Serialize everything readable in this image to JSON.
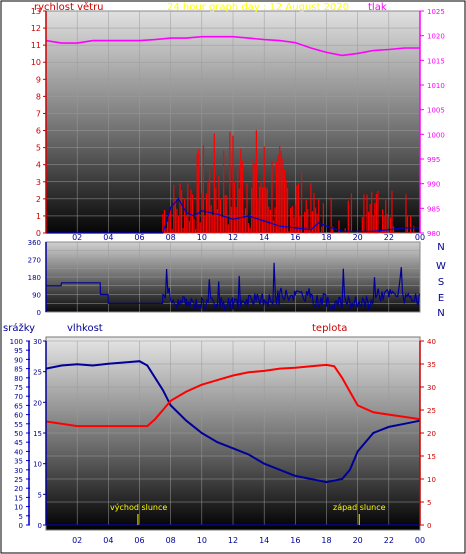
{
  "colors": {
    "wind": "#ff0000",
    "wind_gust": "#ff0000",
    "wind_avg": "#0000cc",
    "pressure": "#ff00ff",
    "direction": "#000099",
    "humidity": "#000099",
    "temperature": "#ff0000",
    "rain": "#0000cc",
    "sun_marker": "#ffff00",
    "title": "#ffff00"
  },
  "chart_data": [
    {
      "type": "line",
      "title": "24 hour graph day : 12 August 2020",
      "ylabel": "rychlost větru",
      "y2label": "tlak",
      "x_ticks": [
        "02",
        "04",
        "06",
        "08",
        "10",
        "12",
        "14",
        "16",
        "18",
        "20",
        "22",
        "00"
      ],
      "xlim_hours": [
        0,
        24
      ],
      "ylim": [
        0,
        13
      ],
      "y_ticks": [
        0,
        1,
        2,
        3,
        4,
        5,
        6,
        7,
        8,
        9,
        10,
        11,
        12,
        13
      ],
      "y2lim": [
        980,
        1025
      ],
      "y2_ticks": [
        980,
        985,
        990,
        995,
        1000,
        1005,
        1010,
        1015,
        1020,
        1025
      ],
      "series": [
        {
          "key": "pressure",
          "axis": "right",
          "x": [
            0,
            1,
            2,
            3,
            4,
            5,
            6,
            7,
            8,
            9,
            10,
            11,
            12,
            13,
            14,
            15,
            16,
            17,
            18,
            19,
            20,
            21,
            22,
            23,
            24
          ],
          "values": [
            1019,
            1018.5,
            1018.5,
            1019,
            1019,
            1019,
            1019,
            1019.2,
            1019.5,
            1019.5,
            1019.8,
            1019.8,
            1019.8,
            1019.5,
            1019.2,
            1019,
            1018.6,
            1017.5,
            1016.6,
            1016,
            1016.4,
            1017,
            1017.2,
            1017.5,
            1017.5
          ]
        },
        {
          "key": "wind_avg",
          "axis": "left",
          "x": [
            0,
            6.5,
            7,
            7.5,
            8,
            8.5,
            9,
            9.5,
            10,
            11,
            12,
            13,
            14,
            15,
            16,
            17,
            17.5,
            18,
            19,
            20,
            21,
            22,
            23,
            24
          ],
          "values": [
            0,
            0,
            0,
            0,
            1.5,
            2,
            1.2,
            1,
            1.3,
            1.1,
            0.8,
            1,
            0.7,
            0.4,
            0.3,
            0.2,
            0.6,
            0.4,
            0.1,
            0.1,
            0.1,
            0.2,
            0.3,
            0.3
          ]
        }
      ],
      "gust_ranges": [
        {
          "from": 7.5,
          "to": 17.5,
          "max": 6.5
        },
        {
          "from": 17.5,
          "to": 24,
          "max": 2.5
        }
      ]
    },
    {
      "type": "line",
      "ylabel_right": [
        "N",
        "W",
        "S",
        "E",
        "N"
      ],
      "xlim_hours": [
        0,
        24
      ],
      "ylim": [
        0,
        360
      ],
      "y_ticks": [
        0,
        45,
        90,
        135,
        180,
        225,
        270,
        315,
        360
      ],
      "y_labels": [
        "0",
        "",
        "90",
        "",
        "180",
        "",
        "270",
        "",
        "360"
      ],
      "series": [
        {
          "key": "direction",
          "x": [
            0,
            1,
            2,
            3,
            3.5,
            4,
            5,
            6,
            7,
            7.5,
            8,
            9,
            10,
            11,
            12,
            13,
            14,
            15,
            16,
            17,
            18,
            19,
            20,
            21,
            22,
            23,
            24
          ],
          "values": [
            135,
            150,
            150,
            150,
            90,
            45,
            45,
            45,
            45,
            90,
            45,
            45,
            45,
            45,
            45,
            60,
            60,
            90,
            90,
            60,
            45,
            45,
            45,
            90,
            90,
            60,
            60
          ]
        }
      ]
    },
    {
      "type": "line",
      "ylabel": "srážky",
      "ylabel2": "vlhkost",
      "y2label": "teplota",
      "x_ticks": [
        "02",
        "04",
        "06",
        "08",
        "10",
        "12",
        "14",
        "16",
        "18",
        "20",
        "22",
        "00"
      ],
      "xlim_hours": [
        0,
        24
      ],
      "rain_ylim": [
        0,
        100
      ],
      "rain_ticks": [
        0,
        5,
        10,
        15,
        20,
        25,
        30,
        35,
        40,
        45,
        50,
        55,
        60,
        65,
        70,
        75,
        80,
        85,
        90,
        95,
        100
      ],
      "humidity_ylim": [
        0,
        30
      ],
      "humidity_ticks": [
        0,
        5,
        10,
        15,
        20,
        25,
        30
      ],
      "temp_ylim": [
        0,
        40
      ],
      "temp_ticks": [
        0,
        5,
        10,
        15,
        20,
        25,
        30,
        35,
        40
      ],
      "series": [
        {
          "key": "humidity",
          "axis": "humidity",
          "x": [
            0,
            1,
            2,
            3,
            4,
            5,
            6,
            6.5,
            7,
            7.5,
            8,
            9,
            10,
            11,
            12,
            13,
            14,
            15,
            16,
            17,
            18,
            19,
            19.5,
            20,
            21,
            22,
            23,
            24
          ],
          "values": [
            25.5,
            26,
            26.2,
            26,
            26.3,
            26.5,
            26.7,
            26,
            24,
            22,
            19.5,
            17,
            15,
            13.5,
            12.5,
            11.5,
            10,
            9,
            8,
            7.5,
            7,
            7.5,
            9,
            12,
            15,
            16,
            16.5,
            17
          ]
        },
        {
          "key": "temperature",
          "axis": "temp",
          "x": [
            0,
            1,
            2,
            3,
            4,
            5,
            6,
            6.5,
            7,
            7.5,
            8,
            9,
            10,
            11,
            12,
            13,
            14,
            15,
            16,
            17,
            18,
            18.5,
            19,
            19.5,
            20,
            21,
            22,
            23,
            24
          ],
          "values": [
            22.5,
            22,
            21.5,
            21.5,
            21.5,
            21.5,
            21.5,
            21.5,
            23,
            25,
            27,
            29,
            30.5,
            31.5,
            32.5,
            33.2,
            33.5,
            34,
            34.2,
            34.5,
            34.8,
            34.5,
            32,
            29,
            26,
            24.5,
            24,
            23.5,
            23
          ]
        },
        {
          "key": "rain",
          "axis": "rain",
          "x": [
            0,
            24
          ],
          "values": [
            0,
            0
          ]
        }
      ],
      "sunrise_label": "východ slunce",
      "sunset_label": "západ slunce",
      "sunrise_hour": 5.9,
      "sunset_hour": 20.1
    }
  ]
}
